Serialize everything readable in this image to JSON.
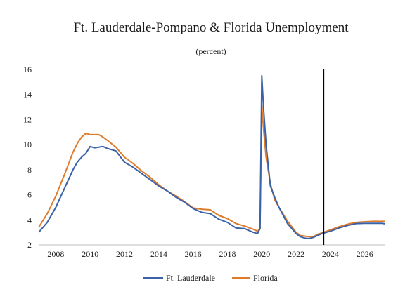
{
  "chart_data": {
    "type": "line",
    "title": "Ft. Lauderdale-Pompano & Florida Unemployment",
    "subtitle": "(percent)",
    "xlabel": "",
    "ylabel": "",
    "xlim": [
      2007.0,
      2027.2
    ],
    "ylim": [
      2,
      16
    ],
    "y_ticks": [
      2,
      4,
      6,
      8,
      10,
      12,
      14,
      16
    ],
    "x_ticks": [
      2008,
      2010,
      2012,
      2014,
      2016,
      2018,
      2020,
      2022,
      2024,
      2026
    ],
    "grid": false,
    "legend_position": "bottom",
    "forecast_marker_x": 2023.6,
    "colors": {
      "ft_lauderdale": "#3a62a8",
      "florida": "#e07b2a",
      "marker": "#000000"
    },
    "x": [
      2007.0,
      2007.5,
      2008.0,
      2008.5,
      2009.0,
      2009.25,
      2009.5,
      2009.75,
      2010.0,
      2010.25,
      2010.5,
      2010.75,
      2011.0,
      2011.5,
      2012.0,
      2012.5,
      2013.0,
      2013.5,
      2014.0,
      2014.5,
      2015.0,
      2015.5,
      2016.0,
      2016.5,
      2017.0,
      2017.5,
      2018.0,
      2018.5,
      2019.0,
      2019.5,
      2019.75,
      2019.9,
      2020.0,
      2020.1,
      2020.25,
      2020.5,
      2020.75,
      2021.0,
      2021.5,
      2022.0,
      2022.25,
      2022.5,
      2022.75,
      2023.0,
      2023.25,
      2023.5,
      2024.0,
      2024.5,
      2025.0,
      2025.5,
      2026.0,
      2026.5,
      2027.0,
      2027.2
    ],
    "series": [
      {
        "name": "Ft. Lauderdale",
        "values": [
          3.0,
          3.8,
          5.0,
          6.5,
          8.0,
          8.6,
          9.0,
          9.3,
          9.85,
          9.75,
          9.8,
          9.85,
          9.7,
          9.5,
          8.6,
          8.2,
          7.7,
          7.2,
          6.7,
          6.3,
          5.8,
          5.4,
          4.9,
          4.6,
          4.5,
          4.05,
          3.8,
          3.35,
          3.3,
          3.0,
          2.9,
          3.3,
          15.5,
          13.0,
          10.0,
          6.7,
          5.8,
          5.0,
          3.7,
          2.9,
          2.65,
          2.55,
          2.5,
          2.6,
          2.75,
          2.9,
          3.1,
          3.35,
          3.55,
          3.7,
          3.72,
          3.72,
          3.72,
          3.68
        ]
      },
      {
        "name": "Florida",
        "values": [
          3.4,
          4.5,
          5.9,
          7.6,
          9.4,
          10.1,
          10.6,
          10.9,
          10.8,
          10.8,
          10.8,
          10.6,
          10.35,
          9.8,
          9.0,
          8.5,
          7.9,
          7.4,
          6.8,
          6.3,
          5.9,
          5.45,
          4.95,
          4.85,
          4.8,
          4.35,
          4.1,
          3.7,
          3.5,
          3.25,
          3.1,
          3.3,
          13.1,
          11.3,
          9.0,
          6.9,
          5.6,
          5.0,
          3.9,
          3.0,
          2.75,
          2.7,
          2.65,
          2.65,
          2.85,
          2.95,
          3.2,
          3.45,
          3.65,
          3.8,
          3.85,
          3.88,
          3.88,
          3.88
        ]
      }
    ]
  }
}
